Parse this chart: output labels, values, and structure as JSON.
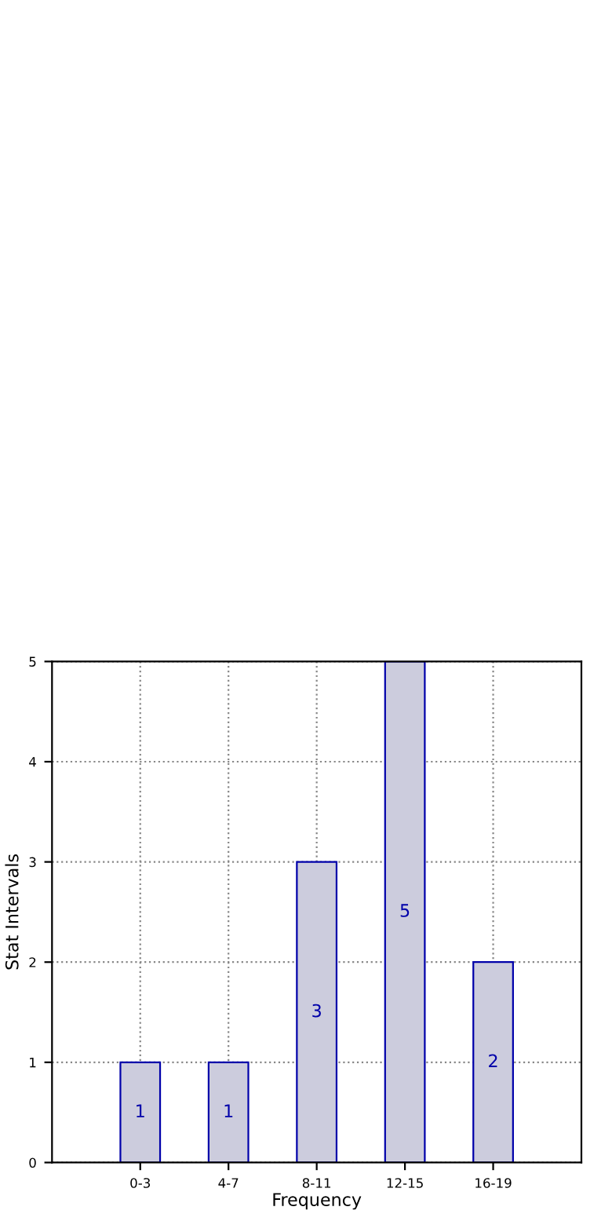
{
  "chart_data": {
    "type": "bar",
    "xlabel": "Frequency",
    "ylabel": "Stat Intervals",
    "categories": [
      "0-3",
      "4-7",
      "8-11",
      "12-15",
      "16-19"
    ],
    "values": [
      1,
      1,
      3,
      5,
      2
    ],
    "color": "#ccccdd",
    "ylim": [
      0,
      5
    ],
    "yticks": [
      0,
      1,
      2,
      3,
      4,
      5
    ],
    "grid": true,
    "data_labels": true
  }
}
